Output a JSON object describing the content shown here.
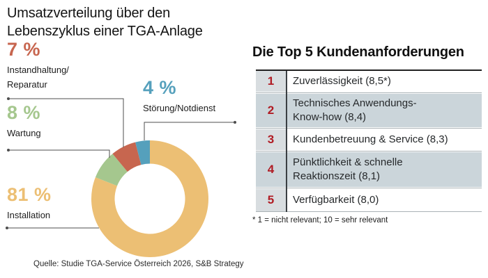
{
  "chart_data": {
    "type": "donut",
    "title": "Umsatzverteilung über den\nLebenszyklus einer TGA-Anlage",
    "unit": "%",
    "slices": [
      {
        "label": "Installation",
        "value": 81,
        "pct_label": "81 %",
        "callout_label": "Installation",
        "color": "#ECBF74"
      },
      {
        "label": "Wartung",
        "value": 8,
        "pct_label": "8 %",
        "callout_label": "Wartung",
        "color": "#A5C78E"
      },
      {
        "label": "Instandhaltung/Reparatur",
        "value": 7,
        "pct_label": "7 %",
        "callout_label": "Instandhaltung/\nReparatur",
        "color": "#C7664F"
      },
      {
        "label": "Störung/Notdienst",
        "value": 4,
        "pct_label": "4 %",
        "callout_label": "Störung/Notdienst",
        "color": "#55A0BC"
      }
    ],
    "source": "Quelle: Studie TGA-Service Österreich 2026, S&B Strategy"
  },
  "table": {
    "heading": "Die Top 5 Kundenanforderungen",
    "rank_color": "#B01B23",
    "rows": [
      {
        "rank": "1",
        "text": "Zuverlässigkeit (8,5*)"
      },
      {
        "rank": "2",
        "text": "Technisches Anwendungs-\nKnow-how (8,4)"
      },
      {
        "rank": "3",
        "text": "Kundenbetreuung & Service (8,3)"
      },
      {
        "rank": "4",
        "text": "Pünktlichkeit & schnelle\nReaktionszeit (8,1)"
      },
      {
        "rank": "5",
        "text": "Verfügbarkeit (8,0)"
      }
    ],
    "footnote": "* 1 = nicht relevant; 10 = sehr relevant"
  }
}
